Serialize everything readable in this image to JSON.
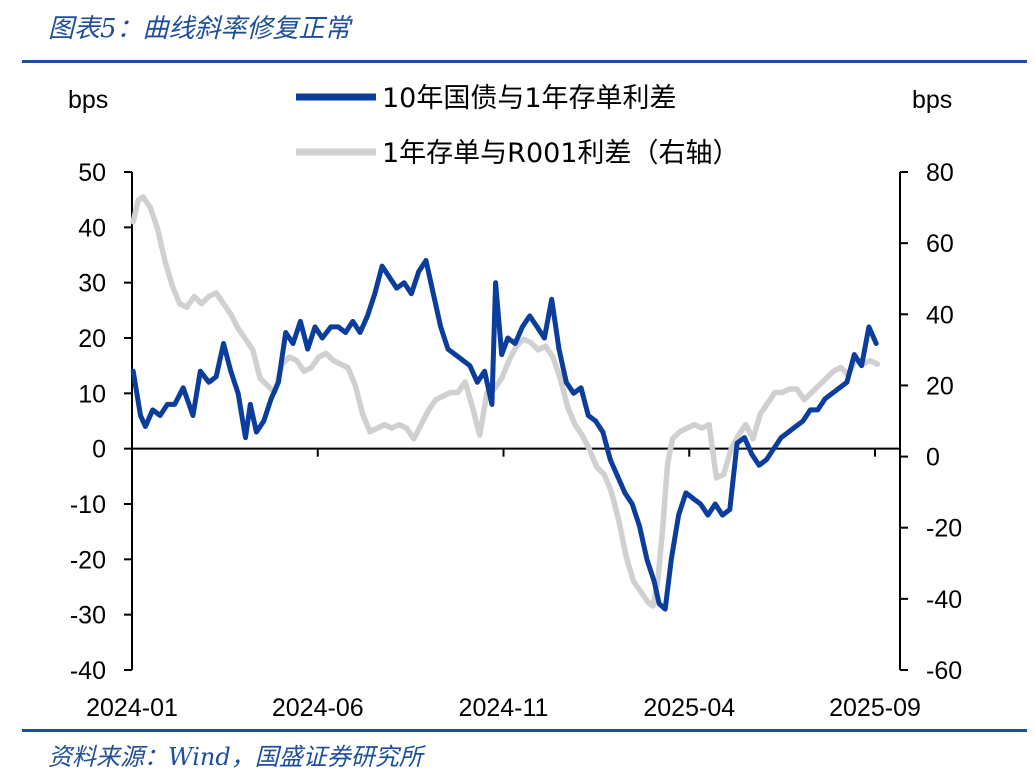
{
  "figure_title": "图表5：曲线斜率修复正常",
  "source_note": "资料来源：Wind，国盛证券研究所",
  "colors": {
    "primary": "#0a3d9c",
    "secondary": "#d0d0d0",
    "rule": "#1f4e9a"
  },
  "chart_data": {
    "type": "line",
    "ylabel_left": "bps",
    "ylabel_right": "bps",
    "ylim_left": [
      -40,
      50
    ],
    "ylim_right": [
      -60,
      80
    ],
    "yticks_left": [
      50,
      40,
      30,
      20,
      10,
      0,
      -10,
      -20,
      -30,
      -40
    ],
    "yticks_right": [
      80,
      60,
      40,
      20,
      0,
      -20,
      -40,
      -60
    ],
    "x_tick_labels": [
      "2024-01",
      "2024-06",
      "2024-11",
      "2025-04",
      "2025-09"
    ],
    "grid": false,
    "legend_position": "top-center",
    "series": [
      {
        "name": "10年国债与1年存单利差",
        "axis": "left",
        "color": "#0a3d9c",
        "points": [
          [
            "2024-01-02",
            14
          ],
          [
            "2024-01-08",
            6
          ],
          [
            "2024-01-12",
            4
          ],
          [
            "2024-01-18",
            7
          ],
          [
            "2024-01-24",
            6
          ],
          [
            "2024-01-30",
            8
          ],
          [
            "2024-02-05",
            8
          ],
          [
            "2024-02-12",
            11
          ],
          [
            "2024-02-20",
            6
          ],
          [
            "2024-02-26",
            14
          ],
          [
            "2024-03-04",
            12
          ],
          [
            "2024-03-10",
            13
          ],
          [
            "2024-03-16",
            19
          ],
          [
            "2024-03-22",
            14
          ],
          [
            "2024-03-28",
            10
          ],
          [
            "2024-04-03",
            2
          ],
          [
            "2024-04-07",
            8
          ],
          [
            "2024-04-12",
            3
          ],
          [
            "2024-04-18",
            5
          ],
          [
            "2024-04-24",
            9
          ],
          [
            "2024-04-30",
            12
          ],
          [
            "2024-05-06",
            21
          ],
          [
            "2024-05-12",
            19
          ],
          [
            "2024-05-18",
            23
          ],
          [
            "2024-05-24",
            18
          ],
          [
            "2024-05-30",
            22
          ],
          [
            "2024-06-05",
            20
          ],
          [
            "2024-06-12",
            22
          ],
          [
            "2024-06-18",
            22
          ],
          [
            "2024-06-24",
            21
          ],
          [
            "2024-06-30",
            23
          ],
          [
            "2024-07-06",
            21
          ],
          [
            "2024-07-12",
            24
          ],
          [
            "2024-07-18",
            28
          ],
          [
            "2024-07-24",
            33
          ],
          [
            "2024-07-30",
            31
          ],
          [
            "2024-08-05",
            29
          ],
          [
            "2024-08-11",
            30
          ],
          [
            "2024-08-17",
            28
          ],
          [
            "2024-08-23",
            32
          ],
          [
            "2024-08-29",
            34
          ],
          [
            "2024-09-04",
            28
          ],
          [
            "2024-09-10",
            22
          ],
          [
            "2024-09-16",
            18
          ],
          [
            "2024-09-22",
            17
          ],
          [
            "2024-09-28",
            16
          ],
          [
            "2024-10-04",
            15
          ],
          [
            "2024-10-10",
            12
          ],
          [
            "2024-10-16",
            14
          ],
          [
            "2024-10-22",
            8
          ],
          [
            "2024-10-25",
            30
          ],
          [
            "2024-10-30",
            17
          ],
          [
            "2024-11-04",
            20
          ],
          [
            "2024-11-10",
            19
          ],
          [
            "2024-11-16",
            22
          ],
          [
            "2024-11-22",
            24
          ],
          [
            "2024-11-28",
            22
          ],
          [
            "2024-12-04",
            20
          ],
          [
            "2024-12-10",
            27
          ],
          [
            "2024-12-16",
            18
          ],
          [
            "2024-12-22",
            12
          ],
          [
            "2024-12-28",
            10
          ],
          [
            "2025-01-03",
            11
          ],
          [
            "2025-01-09",
            6
          ],
          [
            "2025-01-15",
            5
          ],
          [
            "2025-01-21",
            3
          ],
          [
            "2025-01-27",
            -2
          ],
          [
            "2025-02-02",
            -5
          ],
          [
            "2025-02-08",
            -8
          ],
          [
            "2025-02-14",
            -10
          ],
          [
            "2025-02-20",
            -14
          ],
          [
            "2025-02-26",
            -20
          ],
          [
            "2025-03-04",
            -24
          ],
          [
            "2025-03-08",
            -28
          ],
          [
            "2025-03-13",
            -29
          ],
          [
            "2025-03-18",
            -20
          ],
          [
            "2025-03-24",
            -12
          ],
          [
            "2025-03-30",
            -8
          ],
          [
            "2025-04-05",
            -9
          ],
          [
            "2025-04-11",
            -10
          ],
          [
            "2025-04-17",
            -12
          ],
          [
            "2025-04-23",
            -10
          ],
          [
            "2025-04-29",
            -12
          ],
          [
            "2025-05-05",
            -11
          ],
          [
            "2025-05-11",
            1
          ],
          [
            "2025-05-17",
            2
          ],
          [
            "2025-05-23",
            -1
          ],
          [
            "2025-05-29",
            -3
          ],
          [
            "2025-06-04",
            -2
          ],
          [
            "2025-06-10",
            0
          ],
          [
            "2025-06-16",
            2
          ],
          [
            "2025-06-22",
            3
          ],
          [
            "2025-06-28",
            4
          ],
          [
            "2025-07-04",
            5
          ],
          [
            "2025-07-10",
            7
          ],
          [
            "2025-07-16",
            7
          ],
          [
            "2025-07-22",
            9
          ],
          [
            "2025-07-28",
            10
          ],
          [
            "2025-08-03",
            11
          ],
          [
            "2025-08-09",
            12
          ],
          [
            "2025-08-15",
            17
          ],
          [
            "2025-08-21",
            15
          ],
          [
            "2025-08-27",
            22
          ],
          [
            "2025-09-02",
            19
          ]
        ]
      },
      {
        "name": "1年存单与R001利差（右轴）",
        "axis": "right",
        "color": "#d0d0d0",
        "points": [
          [
            "2024-01-02",
            66
          ],
          [
            "2024-01-06",
            72
          ],
          [
            "2024-01-10",
            73
          ],
          [
            "2024-01-16",
            70
          ],
          [
            "2024-01-22",
            64
          ],
          [
            "2024-01-28",
            55
          ],
          [
            "2024-02-03",
            48
          ],
          [
            "2024-02-09",
            43
          ],
          [
            "2024-02-15",
            42
          ],
          [
            "2024-02-21",
            45
          ],
          [
            "2024-02-27",
            43
          ],
          [
            "2024-03-04",
            45
          ],
          [
            "2024-03-10",
            46
          ],
          [
            "2024-03-16",
            43
          ],
          [
            "2024-03-22",
            40
          ],
          [
            "2024-03-28",
            36
          ],
          [
            "2024-04-03",
            33
          ],
          [
            "2024-04-09",
            30
          ],
          [
            "2024-04-15",
            22
          ],
          [
            "2024-04-21",
            20
          ],
          [
            "2024-04-27",
            18
          ],
          [
            "2024-05-03",
            26
          ],
          [
            "2024-05-09",
            28
          ],
          [
            "2024-05-15",
            27
          ],
          [
            "2024-05-21",
            24
          ],
          [
            "2024-05-27",
            25
          ],
          [
            "2024-06-02",
            28
          ],
          [
            "2024-06-08",
            29
          ],
          [
            "2024-06-14",
            27
          ],
          [
            "2024-06-20",
            26
          ],
          [
            "2024-06-26",
            25
          ],
          [
            "2024-07-02",
            20
          ],
          [
            "2024-07-08",
            12
          ],
          [
            "2024-07-14",
            7
          ],
          [
            "2024-07-20",
            8
          ],
          [
            "2024-07-26",
            9
          ],
          [
            "2024-08-01",
            8
          ],
          [
            "2024-08-07",
            9
          ],
          [
            "2024-08-13",
            8
          ],
          [
            "2024-08-19",
            5
          ],
          [
            "2024-08-25",
            9
          ],
          [
            "2024-08-31",
            13
          ],
          [
            "2024-09-06",
            16
          ],
          [
            "2024-09-12",
            17
          ],
          [
            "2024-09-18",
            18
          ],
          [
            "2024-09-24",
            18
          ],
          [
            "2024-09-30",
            21
          ],
          [
            "2024-10-06",
            14
          ],
          [
            "2024-10-12",
            6
          ],
          [
            "2024-10-18",
            18
          ],
          [
            "2024-10-24",
            19
          ],
          [
            "2024-10-30",
            22
          ],
          [
            "2024-11-05",
            27
          ],
          [
            "2024-11-11",
            31
          ],
          [
            "2024-11-17",
            33
          ],
          [
            "2024-11-23",
            32
          ],
          [
            "2024-11-29",
            30
          ],
          [
            "2024-12-05",
            31
          ],
          [
            "2024-12-11",
            28
          ],
          [
            "2024-12-17",
            22
          ],
          [
            "2024-12-23",
            14
          ],
          [
            "2024-12-29",
            9
          ],
          [
            "2025-01-04",
            6
          ],
          [
            "2025-01-10",
            2
          ],
          [
            "2025-01-16",
            -3
          ],
          [
            "2025-01-22",
            -5
          ],
          [
            "2025-01-28",
            -10
          ],
          [
            "2025-02-03",
            -18
          ],
          [
            "2025-02-09",
            -28
          ],
          [
            "2025-02-15",
            -35
          ],
          [
            "2025-02-21",
            -38
          ],
          [
            "2025-02-27",
            -41
          ],
          [
            "2025-03-03",
            -42
          ],
          [
            "2025-03-07",
            -35
          ],
          [
            "2025-03-11",
            -20
          ],
          [
            "2025-03-15",
            -2
          ],
          [
            "2025-03-19",
            5
          ],
          [
            "2025-03-25",
            7
          ],
          [
            "2025-03-31",
            8
          ],
          [
            "2025-04-06",
            9
          ],
          [
            "2025-04-12",
            8
          ],
          [
            "2025-04-18",
            9
          ],
          [
            "2025-04-24",
            -6
          ],
          [
            "2025-04-30",
            -5
          ],
          [
            "2025-05-06",
            2
          ],
          [
            "2025-05-12",
            6
          ],
          [
            "2025-05-18",
            9
          ],
          [
            "2025-05-24",
            5
          ],
          [
            "2025-05-30",
            12
          ],
          [
            "2025-06-05",
            15
          ],
          [
            "2025-06-11",
            18
          ],
          [
            "2025-06-17",
            18
          ],
          [
            "2025-06-23",
            19
          ],
          [
            "2025-06-29",
            19
          ],
          [
            "2025-07-05",
            16
          ],
          [
            "2025-07-11",
            18
          ],
          [
            "2025-07-17",
            20
          ],
          [
            "2025-07-23",
            22
          ],
          [
            "2025-07-29",
            24
          ],
          [
            "2025-08-04",
            25
          ],
          [
            "2025-08-10",
            23
          ],
          [
            "2025-08-16",
            27
          ],
          [
            "2025-08-22",
            26
          ],
          [
            "2025-08-28",
            27
          ],
          [
            "2025-09-03",
            26
          ]
        ]
      }
    ]
  }
}
